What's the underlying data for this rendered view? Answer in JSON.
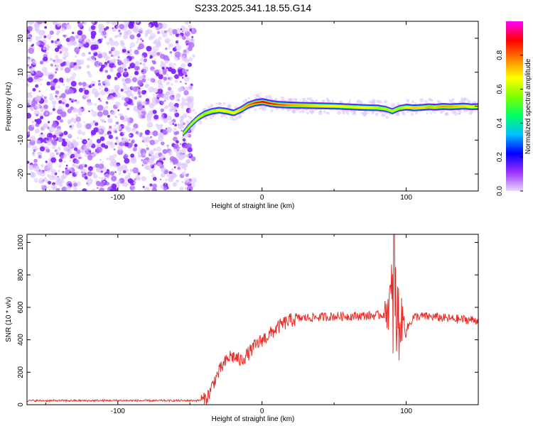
{
  "title": "S233.2025.341.18.55.G14",
  "chart_data": [
    {
      "type": "heatmap",
      "xlabel": "Height of straight line (km)",
      "ylabel": "Frequency (Hz)",
      "xlim": [
        -163,
        150
      ],
      "ylim": [
        -25,
        25
      ],
      "xticks": [
        -100,
        0,
        100
      ],
      "yticks": [
        -20,
        -10,
        0,
        10,
        20
      ],
      "colorbar": {
        "label": "Normalized spectral amplitude",
        "range": [
          0,
          1
        ],
        "ticks": [
          "0.0",
          "0.2",
          "0.4",
          "0.6",
          "0.8"
        ],
        "colormap": [
          "#e8d6ff",
          "#9b30ff",
          "#0000ff",
          "#00bfff",
          "#00ff66",
          "#80ff00",
          "#ffff00",
          "#ff8000",
          "#ff0000",
          "#ff00ff"
        ]
      },
      "noise_region_x": [
        -163,
        -50
      ],
      "ridge": {
        "x": [
          -55,
          -50,
          -45,
          -40,
          -35,
          -30,
          -25,
          -20,
          -15,
          -10,
          -5,
          0,
          5,
          10,
          20,
          30,
          40,
          50,
          60,
          70,
          80,
          85,
          88,
          90,
          92,
          95,
          100,
          105,
          110,
          115,
          120,
          125,
          130,
          135,
          140,
          145,
          150
        ],
        "frequency": [
          -8,
          -5.5,
          -3.5,
          -2.2,
          -1.5,
          -1.2,
          -1.5,
          -2,
          -1,
          0.3,
          1,
          1.3,
          0.8,
          0.5,
          0.3,
          0.2,
          0.1,
          0,
          -0.2,
          -0.4,
          -0.5,
          -0.8,
          -1.2,
          -1.5,
          -1.1,
          -0.6,
          -0.3,
          -0.5,
          -0.4,
          -0.2,
          -0.3,
          -0.1,
          -0.2,
          -0.1,
          0,
          -0.2,
          -0.1
        ],
        "amplitude": [
          0.35,
          0.45,
          0.55,
          0.62,
          0.68,
          0.7,
          0.75,
          0.72,
          0.78,
          0.85,
          0.92,
          0.97,
          0.95,
          0.9,
          0.82,
          0.78,
          0.75,
          0.72,
          0.7,
          0.72,
          0.65,
          0.5,
          0.45,
          0.55,
          0.5,
          0.62,
          0.72,
          0.78,
          0.75,
          0.8,
          0.78,
          0.82,
          0.8,
          0.78,
          0.75,
          0.72,
          0.7
        ]
      }
    },
    {
      "type": "line",
      "xlabel": "Height of straight line (km)",
      "ylabel": "SNR (10 * v/v)",
      "xlim": [
        -163,
        150
      ],
      "ylim": [
        0,
        1050
      ],
      "xticks": [
        -100,
        0,
        100
      ],
      "yticks": [
        0,
        200,
        400,
        600,
        800,
        1000
      ],
      "color": "#e8302a",
      "series": [
        {
          "x": [
            -163,
            -140,
            -120,
            -100,
            -80,
            -60,
            -45,
            -40,
            -37,
            -33,
            -28,
            -22,
            -18,
            -15,
            -10,
            -5,
            0,
            5,
            10,
            15,
            20,
            25,
            30,
            40,
            50,
            60,
            70,
            80,
            85,
            88,
            90,
            92,
            95,
            98,
            100,
            105,
            110,
            120,
            130,
            140,
            150
          ],
          "y": [
            25,
            25,
            25,
            26,
            25,
            25,
            26,
            30,
            60,
            150,
            230,
            300,
            290,
            270,
            310,
            360,
            400,
            430,
            470,
            500,
            520,
            530,
            535,
            540,
            545,
            545,
            548,
            550,
            560,
            620,
            600,
            580,
            500,
            520,
            460,
            540,
            545,
            540,
            530,
            525,
            520
          ]
        }
      ]
    }
  ]
}
